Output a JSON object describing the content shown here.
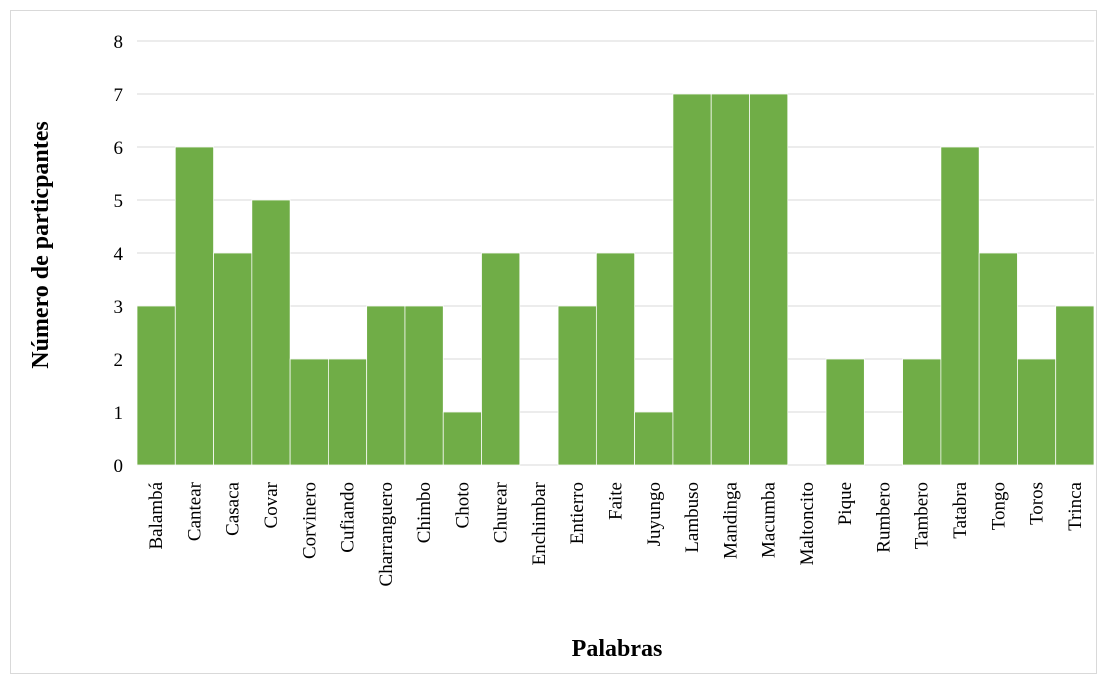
{
  "chart_data": {
    "type": "bar",
    "title": "",
    "xlabel": "Palabras",
    "ylabel": "Número de particpantes",
    "ylim": [
      0,
      8
    ],
    "yticks": [
      0,
      1,
      2,
      3,
      4,
      5,
      6,
      7,
      8
    ],
    "grid": true,
    "legend": "none",
    "bar_color": "#70ad47",
    "categories": [
      "Balambá",
      "Cantear",
      "Casaca",
      "Covar",
      "Corvinero",
      "Cufiando",
      "Charranguero",
      "Chimbo",
      "Choto",
      "Churear",
      "Enchimbar",
      "Entierro",
      "Faite",
      "Juyungo",
      "Lambuso",
      "Mandinga",
      "Macumba",
      "Maltoncito",
      "Pique",
      "Rumbero",
      "Tambero",
      "Tatabra",
      "Tongo",
      "Toros",
      "Trinca"
    ],
    "values": [
      3,
      6,
      4,
      5,
      2,
      2,
      3,
      3,
      1,
      4,
      0,
      3,
      4,
      1,
      7,
      7,
      7,
      0,
      2,
      0,
      2,
      6,
      4,
      2,
      3
    ]
  }
}
